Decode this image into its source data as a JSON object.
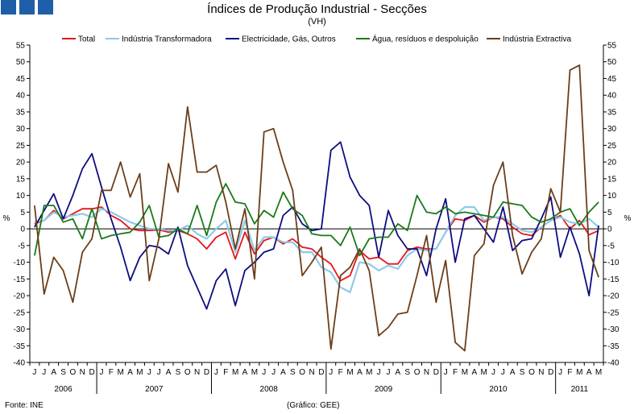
{
  "brand_color": "#1f5ea8",
  "footer": {
    "source": "Fonte: INE",
    "credit": "(Gráfico: GEE)"
  },
  "chart_data": {
    "type": "line",
    "title": "Índices de Produção Industrial - Secções",
    "subtitle": "(VH)",
    "ylabel_left": "%",
    "ylabel_right": "%",
    "ylim": [
      -40,
      55
    ],
    "yticks": [
      -40,
      -35,
      -30,
      -25,
      -20,
      -15,
      -10,
      -5,
      0,
      5,
      10,
      15,
      20,
      25,
      30,
      35,
      40,
      45,
      50,
      55
    ],
    "grid": false,
    "legend": "top",
    "month_labels": [
      "J",
      "J",
      "A",
      "S",
      "O",
      "N",
      "D",
      "J",
      "F",
      "M",
      "A",
      "M",
      "J",
      "J",
      "A",
      "S",
      "O",
      "N",
      "D",
      "J",
      "F",
      "M",
      "A",
      "M",
      "J",
      "J",
      "A",
      "S",
      "O",
      "N",
      "D",
      "J",
      "F",
      "M",
      "A",
      "M",
      "J",
      "J",
      "A",
      "S",
      "O",
      "N",
      "D",
      "J",
      "F",
      "M",
      "A",
      "M",
      "J",
      "J",
      "A",
      "S",
      "O",
      "N",
      "D",
      "J",
      "F",
      "M",
      "A",
      "M"
    ],
    "years": [
      {
        "label": "2006",
        "start": 0,
        "end": 7
      },
      {
        "label": "2007",
        "start": 7,
        "end": 19
      },
      {
        "label": "2008",
        "start": 19,
        "end": 31
      },
      {
        "label": "2009",
        "start": 31,
        "end": 43
      },
      {
        "label": "2010",
        "start": 43,
        "end": 55
      },
      {
        "label": "2011",
        "start": 55,
        "end": 60
      }
    ],
    "series": [
      {
        "name": "Total",
        "color": "#e8141b",
        "values": [
          1.5,
          2.5,
          5.5,
          3.0,
          4.5,
          6.0,
          6.0,
          6.5,
          4.0,
          2.5,
          0.0,
          -0.5,
          -0.5,
          -0.3,
          -1.0,
          -0.5,
          -1.5,
          -3.0,
          -6.0,
          -2.5,
          -1.0,
          -9.0,
          -1.0,
          -7.5,
          -3.5,
          -2.5,
          -4.5,
          -3.0,
          -5.5,
          -6.0,
          -8.5,
          -10.5,
          -15.5,
          -14.0,
          -6.5,
          -9.0,
          -8.5,
          -10.5,
          -10.5,
          -6.5,
          -5.5,
          -6.0,
          -6.0,
          -1.0,
          3.0,
          2.5,
          4.0,
          2.0,
          3.5,
          3.0,
          0.5,
          -1.5,
          -2.0,
          0.5,
          2.5,
          4.0,
          0.0,
          2.5,
          -1.8,
          -0.5
        ]
      },
      {
        "name": "Indústria Transformadora",
        "color": "#8ec9ea",
        "values": [
          2.0,
          2.5,
          5.0,
          3.5,
          4.0,
          4.5,
          3.5,
          6.0,
          5.0,
          3.5,
          2.0,
          1.0,
          0.0,
          0.0,
          -0.5,
          -0.5,
          1.0,
          -1.5,
          -3.0,
          0.0,
          2.5,
          -7.0,
          2.5,
          -6.5,
          -2.5,
          -2.5,
          -4.0,
          -4.0,
          -7.0,
          -7.0,
          -11.5,
          -13.0,
          -17.5,
          -19.0,
          -10.0,
          -10.5,
          -12.5,
          -11.0,
          -12.0,
          -8.0,
          -6.0,
          -6.5,
          -6.0,
          -1.0,
          4.0,
          6.5,
          6.5,
          2.5,
          3.5,
          3.5,
          1.5,
          -0.5,
          -1.0,
          0.5,
          2.5,
          3.5,
          2.0,
          1.5,
          3.0,
          0.5
        ]
      },
      {
        "name": "Electricidade, Gás, Outros",
        "color": "#0d0d80",
        "values": [
          0.5,
          5.5,
          10.5,
          3.0,
          10.0,
          18.0,
          22.5,
          12.5,
          3.0,
          -5.5,
          -15.5,
          -8.5,
          -5.0,
          -5.5,
          -7.5,
          0.5,
          -11.0,
          -17.5,
          -24.0,
          -15.5,
          -12.0,
          -23.0,
          -12.5,
          -10.0,
          -7.0,
          -6.0,
          4.0,
          6.5,
          1.5,
          -0.5,
          0.0,
          23.5,
          26.0,
          15.5,
          10.0,
          7.0,
          -8.5,
          5.5,
          -2.0,
          -6.0,
          -6.0,
          -14.0,
          0.0,
          9.0,
          -10.0,
          3.0,
          4.0,
          0.0,
          -4.0,
          6.5,
          -6.5,
          -3.5,
          -3.0,
          3.0,
          9.5,
          -8.5,
          0.5,
          -7.5,
          -20.0,
          1.0
        ]
      },
      {
        "name": "Água, resíduos e despoluição",
        "color": "#1a7a1a",
        "values": [
          -8.0,
          7.0,
          7.0,
          2.0,
          3.0,
          -3.0,
          6.0,
          -3.0,
          -2.0,
          -1.5,
          -1.0,
          2.0,
          7.0,
          -2.5,
          -2.0,
          0.0,
          -1.5,
          7.0,
          -2.0,
          8.0,
          13.5,
          8.0,
          7.5,
          1.5,
          5.5,
          3.5,
          11.0,
          6.0,
          4.0,
          -1.5,
          -2.0,
          -2.0,
          -5.0,
          0.5,
          -8.0,
          -3.0,
          -2.5,
          -2.5,
          1.5,
          -0.5,
          10.0,
          5.0,
          4.5,
          6.5,
          4.5,
          5.0,
          4.5,
          4.0,
          3.5,
          8.0,
          7.5,
          7.0,
          3.5,
          2.0,
          3.0,
          5.0,
          6.0,
          1.0,
          5.0,
          8.0
        ]
      },
      {
        "name": "Indústria Extractiva",
        "color": "#6b3e1a",
        "values": [
          7.0,
          -19.5,
          -8.5,
          -12.5,
          -22.0,
          -7.0,
          -3.0,
          11.5,
          11.5,
          20.0,
          9.5,
          16.5,
          -15.5,
          -3.0,
          19.5,
          11.0,
          36.5,
          17.0,
          17.0,
          19.0,
          8.0,
          -6.0,
          6.0,
          -15.0,
          29.0,
          30.0,
          20.0,
          11.5,
          -14.0,
          -10.0,
          -5.5,
          -36.0,
          -14.0,
          -11.5,
          -6.0,
          -12.5,
          -32.0,
          -29.5,
          -25.5,
          -25.0,
          -14.0,
          -2.0,
          -22.0,
          -9.5,
          -34.0,
          -36.5,
          -8.0,
          -4.5,
          13.0,
          20.0,
          -2.0,
          -13.5,
          -7.0,
          -3.0,
          12.0,
          5.0,
          47.5,
          49.0,
          -6.5,
          -14.5
        ]
      }
    ]
  }
}
